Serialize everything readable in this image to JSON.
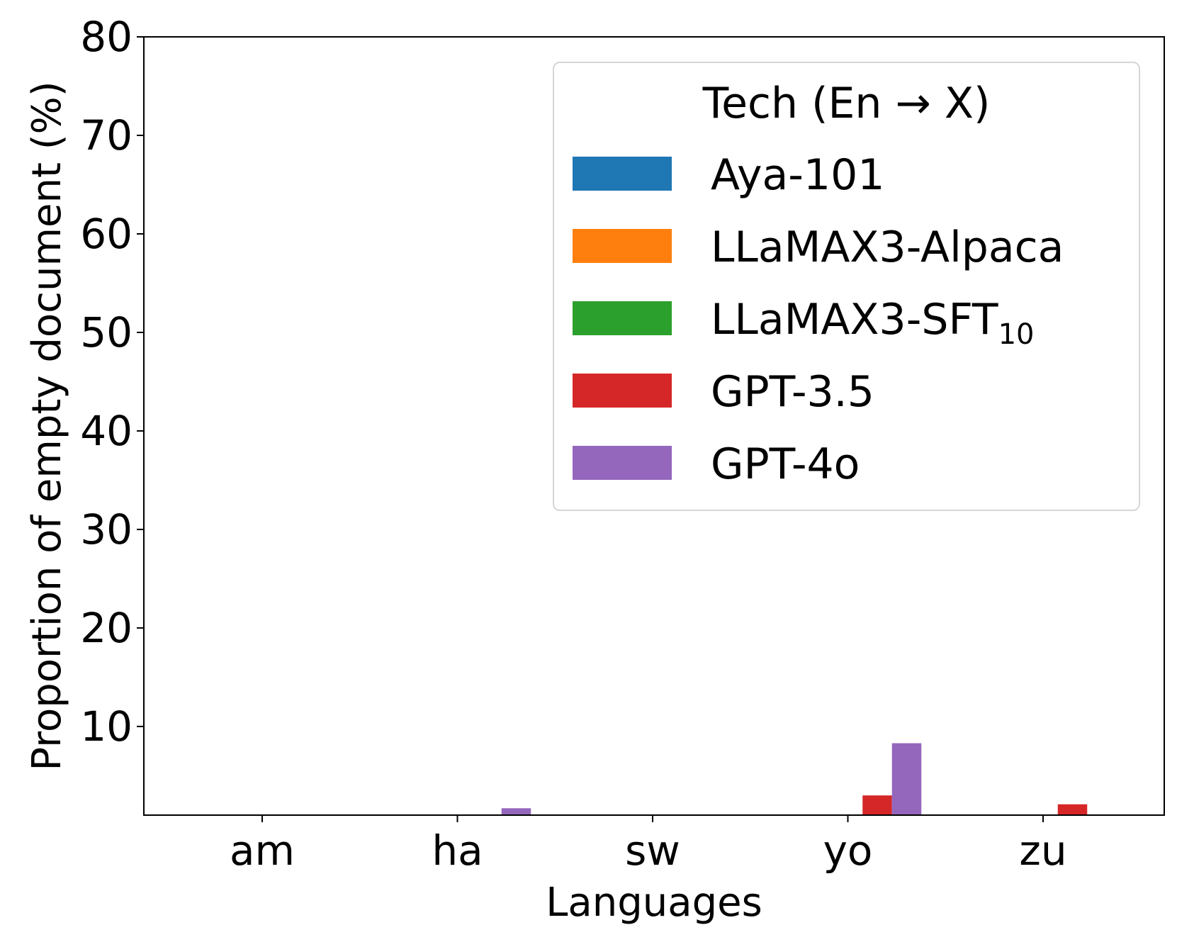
{
  "chart_data": {
    "type": "bar",
    "title": "",
    "xlabel": "Languages",
    "ylabel": "Proportion of empty document (%)",
    "categories": [
      "am",
      "ha",
      "sw",
      "yo",
      "zu"
    ],
    "ylim": [
      1,
      80
    ],
    "yticks": [
      10,
      20,
      30,
      40,
      50,
      60,
      70,
      80
    ],
    "grid": false,
    "legend": {
      "title": "Tech (En → X)",
      "placement": "top-right"
    },
    "series": [
      {
        "name": "Aya-101",
        "name_sub": "",
        "color": "#1f77b4",
        "values": [
          0,
          0,
          0,
          0,
          0
        ]
      },
      {
        "name": "LLaMAX3-Alpaca",
        "name_sub": "",
        "color": "#ff7f0e",
        "values": [
          0,
          0,
          0,
          0,
          0
        ]
      },
      {
        "name": "LLaMAX3-SFT",
        "name_sub": "10",
        "color": "#2ca02c",
        "values": [
          0,
          0,
          0,
          0,
          0
        ]
      },
      {
        "name": "GPT-3.5",
        "name_sub": "",
        "color": "#d62728",
        "values": [
          0,
          0,
          0,
          3.0,
          2.1
        ]
      },
      {
        "name": "GPT-4o",
        "name_sub": "",
        "color": "#9467bd",
        "values": [
          0,
          1.7,
          0,
          8.3,
          0
        ]
      }
    ]
  }
}
